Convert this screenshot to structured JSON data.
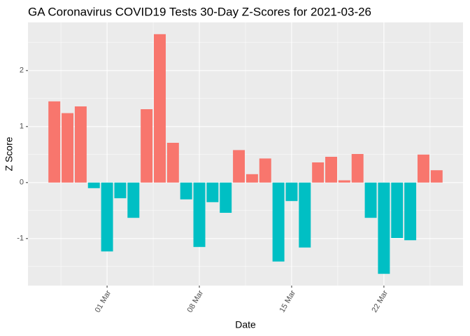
{
  "chart_data": {
    "type": "bar",
    "title": "GA Coronavirus COVID19 Tests 30-Day Z-Scores for 2021-03-26",
    "x_label": "Date",
    "y_label": "Z Score",
    "x": [
      "25 Feb",
      "26 Feb",
      "27 Feb",
      "28 Feb",
      "01 Mar",
      "02 Mar",
      "03 Mar",
      "04 Mar",
      "05 Mar",
      "06 Mar",
      "07 Mar",
      "08 Mar",
      "09 Mar",
      "10 Mar",
      "11 Mar",
      "12 Mar",
      "13 Mar",
      "14 Mar",
      "15 Mar",
      "16 Mar",
      "17 Mar",
      "18 Mar",
      "19 Mar",
      "20 Mar",
      "21 Mar",
      "22 Mar",
      "23 Mar",
      "24 Mar",
      "25 Mar",
      "26 Mar"
    ],
    "values": [
      1.45,
      1.24,
      1.36,
      -0.1,
      -1.23,
      -0.28,
      -0.63,
      1.31,
      2.65,
      0.71,
      -0.3,
      -1.15,
      -0.35,
      -0.54,
      0.58,
      0.15,
      0.43,
      -1.41,
      -0.33,
      -1.16,
      0.36,
      0.46,
      0.04,
      0.51,
      -0.63,
      -1.63,
      -0.99,
      -1.03,
      0.5,
      0.22
    ],
    "xticks": [
      "01 Mar",
      "08 Mar",
      "15 Mar",
      "22 Mar"
    ],
    "ylim": [
      -1.84,
      2.86
    ],
    "yticks": [
      -1,
      0,
      1,
      2
    ],
    "colors": {
      "positive": "#F8766D",
      "negative": "#00BFC4"
    },
    "grid": true,
    "panel_background": "#EBEBEB"
  }
}
